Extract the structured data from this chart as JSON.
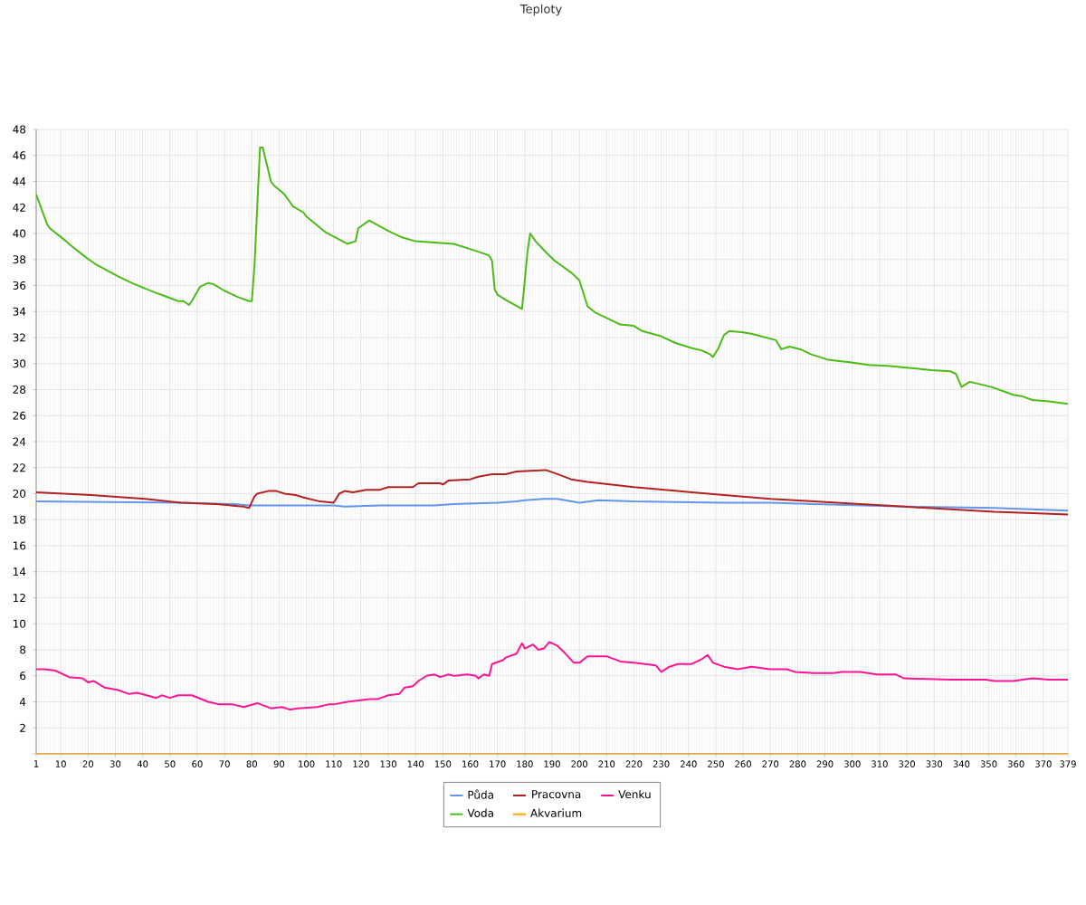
{
  "chart_data": {
    "type": "line",
    "title": "Teploty",
    "xlim": [
      1,
      379
    ],
    "xticks": [
      1,
      10,
      20,
      30,
      40,
      50,
      60,
      70,
      80,
      90,
      100,
      110,
      120,
      130,
      140,
      150,
      160,
      170,
      180,
      190,
      200,
      210,
      220,
      230,
      240,
      250,
      260,
      270,
      280,
      290,
      300,
      310,
      320,
      330,
      340,
      350,
      360,
      370,
      379
    ],
    "ylim": [
      0,
      48
    ],
    "yticks": [
      {
        "value": 0,
        "label": null
      },
      2,
      4,
      6,
      8,
      10,
      12,
      14,
      16,
      18,
      20,
      22,
      24,
      26,
      28,
      30,
      32,
      34,
      36,
      38,
      40,
      42,
      44,
      46,
      48
    ],
    "grid": true,
    "legend": "bottom",
    "marker": "none",
    "line_style": "solid",
    "series": [
      {
        "name": "Půda",
        "color": "#6495ed",
        "x": [
          1,
          54,
          74,
          79,
          110,
          114,
          127,
          147,
          154,
          170,
          177,
          180,
          187,
          192,
          200,
          207,
          220,
          253,
          270,
          286,
          319,
          352,
          379
        ],
        "values": [
          19.4,
          19.3,
          19.2,
          19.1,
          19.1,
          19.0,
          19.1,
          19.1,
          19.2,
          19.3,
          19.4,
          19.5,
          19.6,
          19.6,
          19.3,
          19.5,
          19.4,
          19.3,
          19.3,
          19.2,
          19.0,
          18.9,
          18.7
        ]
      },
      {
        "name": "Pracovna",
        "color": "#b22222",
        "x": [
          1,
          21,
          41,
          54,
          67,
          77,
          79,
          81,
          82,
          86,
          89,
          92,
          96,
          99,
          105,
          110,
          112,
          114,
          117,
          122,
          127,
          130,
          139,
          141,
          149,
          150,
          152,
          160,
          163,
          168,
          173,
          177,
          187,
          188,
          192,
          197,
          203,
          220,
          236,
          253,
          270,
          286,
          303,
          319,
          336,
          352,
          366,
          379
        ],
        "values": [
          20.1,
          19.9,
          19.6,
          19.3,
          19.2,
          19.0,
          18.9,
          19.8,
          20.0,
          20.2,
          20.2,
          20.0,
          19.9,
          19.7,
          19.4,
          19.3,
          20.0,
          20.2,
          20.1,
          20.3,
          20.3,
          20.5,
          20.5,
          20.8,
          20.8,
          20.7,
          21.0,
          21.1,
          21.3,
          21.5,
          21.5,
          21.7,
          21.8,
          21.8,
          21.5,
          21.1,
          20.9,
          20.5,
          20.2,
          19.9,
          19.6,
          19.4,
          19.2,
          19.0,
          18.8,
          18.6,
          18.5,
          18.4
        ]
      },
      {
        "name": "Venku",
        "color": "#ff1493",
        "x": [
          1,
          4,
          8,
          13,
          18,
          20,
          22,
          26,
          31,
          35,
          38,
          45,
          47,
          50,
          53,
          58,
          64,
          68,
          73,
          77,
          82,
          87,
          91,
          94,
          97,
          104,
          108,
          110,
          115,
          123,
          126,
          130,
          134,
          136,
          139,
          141,
          144,
          147,
          149,
          152,
          154,
          159,
          162,
          163,
          165,
          167,
          168,
          172,
          173,
          177,
          179,
          180,
          182,
          183,
          185,
          187,
          189,
          192,
          194,
          198,
          200,
          203,
          210,
          215,
          220,
          224,
          228,
          230,
          233,
          236,
          241,
          245,
          247,
          249,
          253,
          258,
          263,
          270,
          276,
          279,
          286,
          293,
          296,
          303,
          309,
          316,
          319,
          336,
          349,
          352,
          359,
          366,
          372,
          379
        ],
        "values": [
          6.5,
          6.5,
          6.4,
          5.9,
          5.8,
          5.5,
          5.6,
          5.1,
          4.9,
          4.6,
          4.7,
          4.3,
          4.5,
          4.3,
          4.5,
          4.5,
          4.0,
          3.8,
          3.8,
          3.6,
          3.9,
          3.5,
          3.6,
          3.4,
          3.5,
          3.6,
          3.8,
          3.8,
          4.0,
          4.2,
          4.2,
          4.5,
          4.6,
          5.1,
          5.2,
          5.6,
          6.0,
          6.1,
          5.9,
          6.1,
          6.0,
          6.1,
          6.0,
          5.8,
          6.1,
          6.0,
          6.9,
          7.2,
          7.4,
          7.7,
          8.5,
          8.1,
          8.3,
          8.4,
          8.0,
          8.1,
          8.6,
          8.3,
          7.9,
          7.0,
          7.0,
          7.5,
          7.5,
          7.1,
          7.0,
          6.9,
          6.8,
          6.3,
          6.7,
          6.9,
          6.9,
          7.3,
          7.6,
          7.0,
          6.7,
          6.5,
          6.7,
          6.5,
          6.5,
          6.3,
          6.2,
          6.2,
          6.3,
          6.3,
          6.1,
          6.1,
          5.8,
          5.7,
          5.7,
          5.6,
          5.6,
          5.8,
          5.7,
          5.7
        ]
      },
      {
        "name": "Voda",
        "color": "#4cbb17",
        "x": [
          1,
          5,
          6,
          12,
          13,
          19,
          23,
          31,
          36,
          44,
          48,
          53,
          55,
          57,
          58,
          61,
          64,
          66,
          70,
          75,
          79,
          80,
          81,
          83,
          84,
          87,
          88,
          92,
          95,
          99,
          100,
          107,
          115,
          118,
          119,
          123,
          130,
          135,
          140,
          147,
          154,
          163,
          167,
          168,
          169,
          170,
          173,
          179,
          181,
          182,
          184,
          188,
          191,
          193,
          197,
          200,
          203,
          206,
          210,
          215,
          220,
          223,
          230,
          235,
          241,
          245,
          248,
          249,
          251,
          253,
          255,
          260,
          263,
          272,
          274,
          277,
          281,
          285,
          291,
          299,
          306,
          314,
          319,
          329,
          336,
          338,
          340,
          343,
          351,
          359,
          362,
          366,
          372,
          379
        ],
        "values": [
          43.0,
          40.7,
          40.4,
          39.4,
          39.2,
          38.2,
          37.6,
          36.7,
          36.2,
          35.5,
          35.2,
          34.8,
          34.8,
          34.5,
          34.8,
          35.9,
          36.2,
          36.1,
          35.6,
          35.1,
          34.8,
          34.8,
          37.6,
          46.6,
          46.6,
          44.0,
          43.7,
          43.0,
          42.1,
          41.6,
          41.3,
          40.1,
          39.2,
          39.4,
          40.4,
          41.0,
          40.2,
          39.7,
          39.4,
          39.3,
          39.2,
          38.6,
          38.3,
          37.9,
          35.7,
          35.3,
          34.9,
          34.2,
          38.6,
          40.0,
          39.4,
          38.5,
          37.9,
          37.6,
          37.0,
          36.4,
          34.4,
          33.9,
          33.5,
          33.0,
          32.9,
          32.5,
          32.1,
          31.6,
          31.2,
          31.0,
          30.7,
          30.5,
          31.2,
          32.2,
          32.5,
          32.4,
          32.3,
          31.8,
          31.1,
          31.3,
          31.1,
          30.7,
          30.3,
          30.1,
          29.9,
          29.8,
          29.7,
          29.5,
          29.4,
          29.2,
          28.2,
          28.6,
          28.2,
          27.6,
          27.5,
          27.2,
          27.1,
          26.9
        ]
      },
      {
        "name": "Akvarium",
        "color": "#ffa500",
        "x": [
          1,
          379
        ],
        "values": [
          0,
          0
        ]
      }
    ]
  }
}
